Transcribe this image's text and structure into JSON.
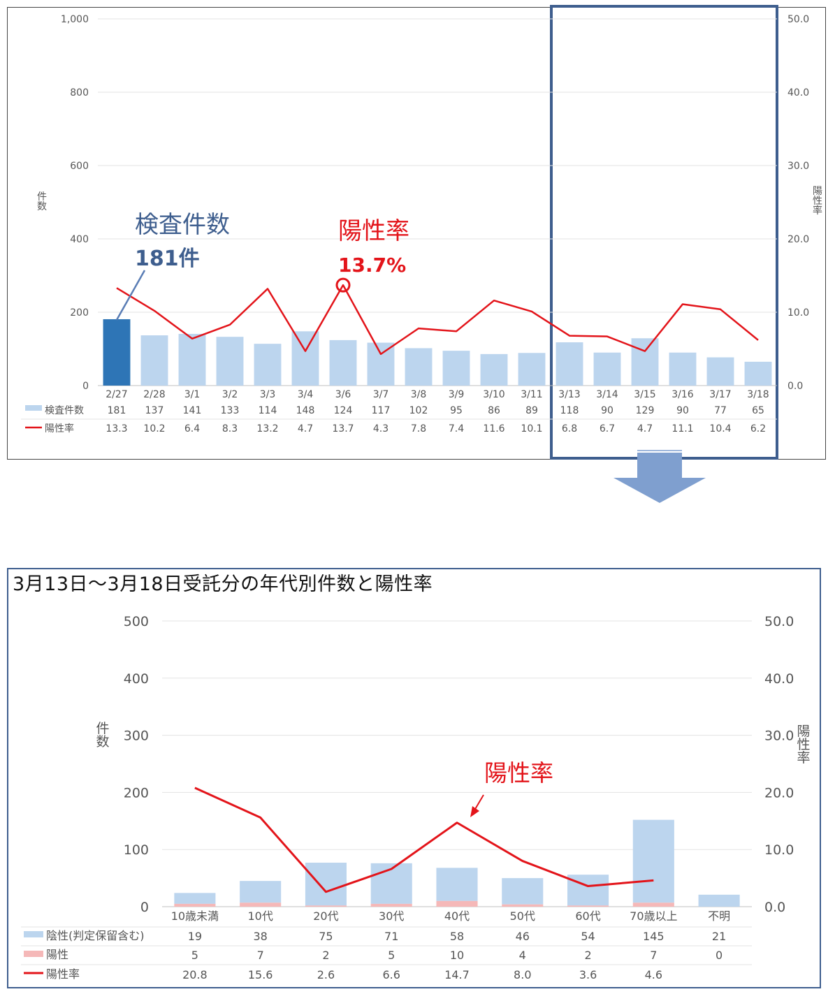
{
  "chart_data": [
    {
      "type": "bar",
      "categories": [
        "2/27",
        "2/28",
        "3/1",
        "3/2",
        "3/3",
        "3/4",
        "3/6",
        "3/7",
        "3/8",
        "3/9",
        "3/10",
        "3/11",
        "3/13",
        "3/14",
        "3/15",
        "3/16",
        "3/17",
        "3/18"
      ],
      "series": [
        {
          "name": "検査件数",
          "type": "bar",
          "axis": "left",
          "color": "#bcd5ee",
          "highlight_color": "#2e75b6",
          "values": [
            181,
            137,
            141,
            133,
            114,
            148,
            124,
            117,
            102,
            95,
            86,
            89,
            118,
            90,
            129,
            90,
            77,
            65
          ]
        },
        {
          "name": "陽性率",
          "type": "line",
          "axis": "right",
          "color": "#e3141a",
          "values": [
            13.3,
            10.2,
            6.4,
            8.3,
            13.2,
            4.7,
            13.7,
            4.3,
            7.8,
            7.4,
            11.6,
            10.1,
            6.8,
            6.7,
            4.7,
            11.1,
            10.4,
            6.2
          ]
        }
      ],
      "y_left": {
        "label": "件数",
        "ticks": [
          "0",
          "200",
          "400",
          "600",
          "800",
          "1,000"
        ],
        "ylim": [
          0,
          1000
        ]
      },
      "y_right": {
        "label": "陽性率",
        "ticks": [
          "0.0",
          "10.0",
          "20.0",
          "30.0",
          "40.0",
          "50.0"
        ],
        "ylim": [
          0,
          50
        ]
      },
      "table_rows": [
        {
          "label": "検査件数",
          "values": [
            "181",
            "137",
            "141",
            "133",
            "114",
            "148",
            "124",
            "117",
            "102",
            "95",
            "86",
            "89",
            "118",
            "90",
            "129",
            "90",
            "77",
            "65"
          ]
        },
        {
          "label": "陽性率",
          "values": [
            "13.3",
            "10.2",
            "6.4",
            "8.3",
            "13.2",
            "4.7",
            "13.7",
            "4.3",
            "7.8",
            "7.4",
            "11.6",
            "10.1",
            "6.8",
            "6.7",
            "4.7",
            "11.1",
            "10.4",
            "6.2"
          ]
        }
      ],
      "annotations": {
        "count_title": "検査件数",
        "count_value": "181件",
        "rate_title": "陽性率",
        "rate_value": "13.7%"
      },
      "grid": true
    },
    {
      "type": "bar",
      "title": "3月13日～3月18日受託分の年代別件数と陽性率",
      "categories": [
        "10歳未満",
        "10代",
        "20代",
        "30代",
        "40代",
        "50代",
        "60代",
        "70歳以上",
        "不明"
      ],
      "series": [
        {
          "name": "陰性(判定保留含む)",
          "type": "bar",
          "stacked": true,
          "axis": "left",
          "color": "#bcd5ee",
          "values": [
            19,
            38,
            75,
            71,
            58,
            46,
            54,
            145,
            21
          ]
        },
        {
          "name": "陽性",
          "type": "bar",
          "stacked": true,
          "axis": "left",
          "color": "#f5b8b8",
          "values": [
            5,
            7,
            2,
            5,
            10,
            4,
            2,
            7,
            0
          ]
        },
        {
          "name": "陽性率",
          "type": "line",
          "axis": "right",
          "color": "#e3141a",
          "values": [
            20.8,
            15.6,
            2.6,
            6.6,
            14.7,
            8.0,
            3.6,
            4.6,
            null
          ]
        }
      ],
      "y_left": {
        "label": "件数",
        "ticks": [
          "0",
          "100",
          "200",
          "300",
          "400",
          "500"
        ],
        "ylim": [
          0,
          500
        ]
      },
      "y_right": {
        "label": "陽性率",
        "ticks": [
          "0.0",
          "10.0",
          "20.0",
          "30.0",
          "40.0",
          "50.0"
        ],
        "ylim": [
          0,
          50
        ]
      },
      "table_rows": [
        {
          "label": "陰性(判定保留含む)",
          "values": [
            "19",
            "38",
            "75",
            "71",
            "58",
            "46",
            "54",
            "145",
            "21"
          ]
        },
        {
          "label": "陽性",
          "values": [
            "5",
            "7",
            "2",
            "5",
            "10",
            "4",
            "2",
            "7",
            "0"
          ]
        },
        {
          "label": "陽性率",
          "values": [
            "20.8",
            "15.6",
            "2.6",
            "6.6",
            "14.7",
            "8.0",
            "3.6",
            "4.6",
            ""
          ]
        }
      ],
      "annotations": {
        "rate_title": "陽性率"
      },
      "grid": true
    }
  ]
}
